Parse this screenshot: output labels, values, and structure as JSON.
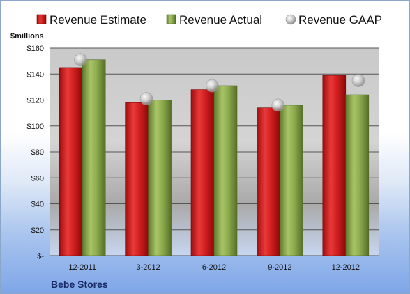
{
  "chart_data": {
    "type": "bar",
    "categories": [
      "12-2011",
      "3-2012",
      "6-2012",
      "9-2012",
      "12-2012"
    ],
    "series": [
      {
        "name": "Revenue Estimate",
        "kind": "bar",
        "color": "#d42020",
        "values": [
          145,
          118,
          128,
          114,
          139
        ]
      },
      {
        "name": "Revenue Actual",
        "kind": "bar",
        "color": "#8fae50",
        "values": [
          151,
          120,
          131,
          116,
          124
        ]
      },
      {
        "name": "Revenue GAAP",
        "kind": "marker",
        "color": "#c8c8c8",
        "values": [
          151,
          121,
          131,
          116,
          135
        ]
      }
    ],
    "ylabel": "$millions",
    "ylim": [
      0,
      160
    ],
    "yticks": [
      0,
      20,
      40,
      60,
      80,
      100,
      120,
      140,
      160
    ],
    "ytick_labels": [
      "$-",
      "$20",
      "$40",
      "$60",
      "$80",
      "$100",
      "$120",
      "$140",
      "$160"
    ],
    "grid": true,
    "legend_position": "top"
  },
  "footer": {
    "company": "Bebe Stores"
  }
}
